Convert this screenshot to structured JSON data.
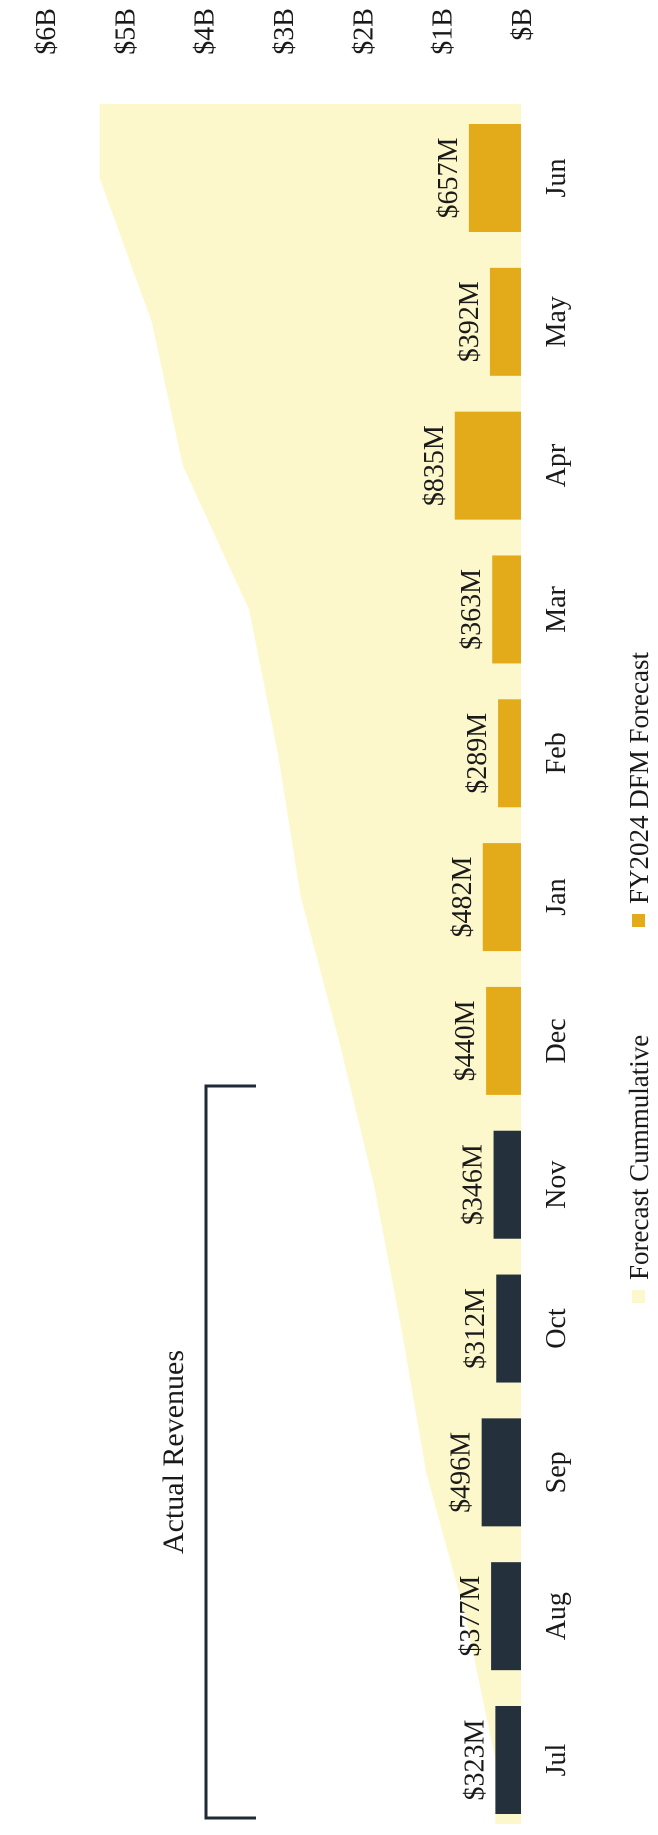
{
  "chart_data": {
    "type": "bar",
    "orientation": "rotated-90",
    "categories": [
      "Jul",
      "Aug",
      "Sep",
      "Oct",
      "Nov",
      "Dec",
      "Jan",
      "Feb",
      "Mar",
      "Apr",
      "May",
      "Jun"
    ],
    "values": [
      323,
      377,
      496,
      312,
      346,
      440,
      482,
      289,
      363,
      835,
      392,
      657
    ],
    "value_labels": [
      "$323M",
      "$377M",
      "$496M",
      "$312M",
      "$346M",
      "$440M",
      "$482M",
      "$289M",
      "$363M",
      "$835M",
      "$392M",
      "$657M"
    ],
    "value_unit": "$M",
    "bar_kind": [
      "actual",
      "actual",
      "actual",
      "actual",
      "actual",
      "forecast",
      "forecast",
      "forecast",
      "forecast",
      "forecast",
      "forecast",
      "forecast"
    ],
    "y_ticks": [
      {
        "value": 0,
        "label": "$B"
      },
      {
        "value": 1000,
        "label": "$1B"
      },
      {
        "value": 2000,
        "label": "$2B"
      },
      {
        "value": 3000,
        "label": "$3B"
      },
      {
        "value": 4000,
        "label": "$4B"
      },
      {
        "value": 5000,
        "label": "$5B"
      },
      {
        "value": 6000,
        "label": "$6B"
      }
    ],
    "ylim": [
      0,
      6000
    ],
    "grid": false,
    "cumulative_area": {
      "name": "Forecast Cummulative",
      "values": [
        323,
        700,
        1196,
        1508,
        1854,
        2294,
        2776,
        3065,
        3428,
        4263,
        4655,
        5312
      ],
      "color": "#fdf8cc"
    },
    "series": [
      {
        "name": "FY2024 DFM Forecast",
        "color": "#e3ab1a"
      }
    ],
    "actual_color": "#25303d",
    "bracket_label": "Actual Revenues",
    "legend": [
      {
        "name": "Forecast Cummulative",
        "color": "#fdf8cc"
      },
      {
        "name": "FY2024 DFM Forecast",
        "color": "#e3ab1a"
      }
    ],
    "legend_placement": "bottom"
  }
}
